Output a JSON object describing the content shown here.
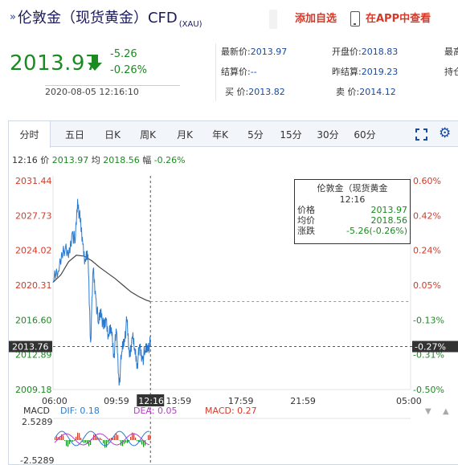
{
  "header": {
    "arrows": "»",
    "title": "伦敦金（现货黄金）CFD",
    "symbol": "(XAU)",
    "add_watchlist": "添加自选",
    "app_view": "在APP中查看"
  },
  "quote": {
    "price": "2013.97",
    "change": "-5.26",
    "change_pct": "-0.26%",
    "timestamp": "2020-08-05 12:16:10",
    "latest_label": "最新价:",
    "latest": "2013.97",
    "settle_label": "结算价:",
    "settle": "--",
    "bid_label": "买  价:",
    "bid": "2013.82",
    "open_label": "开盘价:",
    "open": "2018.83",
    "prev_settle_label": "昨结算:",
    "prev_settle": "2019.23",
    "ask_label": "卖  价:",
    "ask": "2014.12",
    "high_label": "最高",
    "hold_label": "持仓"
  },
  "chart": {
    "tabs": [
      "分时",
      "五日",
      "日K",
      "周K",
      "月K",
      "年K",
      "5分",
      "15分",
      "30分",
      "60分"
    ],
    "info": {
      "time": "12:16",
      "price_label": "价",
      "price": "2013.97",
      "avg_label": "均",
      "avg": "2018.56",
      "amp_label": "幅",
      "amp": "-0.26%"
    },
    "tooltip": {
      "name": "伦敦金（现货黄金",
      "time": "12:16",
      "price_label": "价格",
      "price": "2013.97",
      "avg_label": "均价",
      "avg": "2018.56",
      "chg_label": "涨跌",
      "chg": "-5.26(-0.26%)"
    },
    "macd": {
      "label": "MACD",
      "dif": "DIF: 0.18",
      "dea": "DEA: 0.05",
      "macd": "MACD: 0.27",
      "top": "2.5289",
      "bottom": "-2.5289"
    },
    "crosshair_y_label": "2013.76",
    "crosshair_pct_label": "-0.27%",
    "crosshair_x_label": "12:16",
    "colors": {
      "up": "#d43a2a",
      "down": "#1b8a20",
      "price_line": "#2a7ad0",
      "avg_line": "#444444"
    }
  },
  "chart_data": {
    "type": "line",
    "title": "",
    "xlabel": "",
    "ylabel": "",
    "x_ticks": [
      "06:00",
      "09:59",
      "13:59",
      "17:59",
      "21:59",
      "05:00"
    ],
    "y_ticks_left": [
      "2031.44",
      "2027.73",
      "2024.02",
      "2020.31",
      "2016.60",
      "2012.89",
      "2009.18"
    ],
    "y_ticks_right": [
      "0.60%",
      "0.42%",
      "0.24%",
      "0.05%",
      "-0.13%",
      "-0.31%",
      "-0.50%"
    ],
    "ylim": [
      2009.18,
      2031.44
    ],
    "series": [
      {
        "name": "价格",
        "times": [
          "06:00",
          "06:20",
          "06:40",
          "07:00",
          "07:15",
          "07:25",
          "07:35",
          "07:45",
          "07:55",
          "08:05",
          "08:15",
          "08:25",
          "08:35",
          "08:45",
          "08:55",
          "09:05",
          "09:15",
          "09:25",
          "09:35",
          "09:45",
          "09:55",
          "10:05",
          "10:15",
          "10:25",
          "10:35",
          "10:45",
          "10:55",
          "11:05",
          "11:15",
          "11:25",
          "11:35",
          "11:45",
          "11:55",
          "12:05",
          "12:16"
        ],
        "values": [
          2020.6,
          2021.8,
          2024.5,
          2023.2,
          2026.0,
          2024.8,
          2029.5,
          2027.0,
          2024.6,
          2022.8,
          2023.6,
          2014.2,
          2022.0,
          2019.0,
          2016.2,
          2017.8,
          2015.6,
          2016.6,
          2014.8,
          2015.8,
          2013.0,
          2015.4,
          2009.6,
          2013.2,
          2014.6,
          2016.4,
          2012.6,
          2014.8,
          2013.6,
          2012.0,
          2013.6,
          2012.4,
          2013.2,
          2013.9,
          2013.97
        ]
      },
      {
        "name": "均价",
        "times": [
          "06:00",
          "06:30",
          "07:00",
          "07:30",
          "08:00",
          "08:30",
          "09:00",
          "09:30",
          "10:00",
          "10:30",
          "11:00",
          "11:30",
          "12:00",
          "12:16"
        ],
        "values": [
          2020.6,
          2021.4,
          2022.8,
          2023.5,
          2023.4,
          2022.9,
          2022.2,
          2021.6,
          2021.0,
          2020.3,
          2019.6,
          2019.1,
          2018.7,
          2018.56
        ]
      }
    ]
  }
}
